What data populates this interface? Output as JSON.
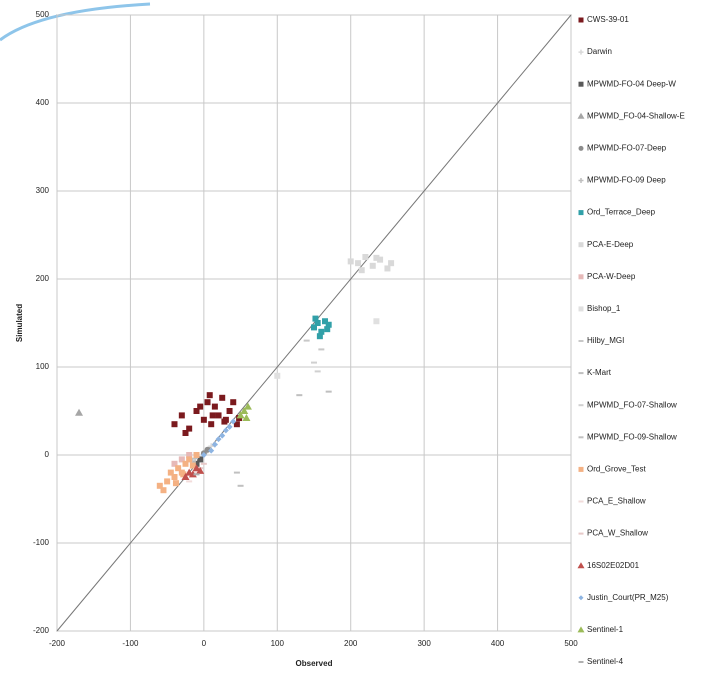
{
  "chart_data": {
    "type": "scatter",
    "x_label": "Observed",
    "y_label": "Simulated",
    "xlim": [
      -200,
      500
    ],
    "ylim": [
      -200,
      500
    ],
    "xticks": [
      -200,
      -100,
      0,
      100,
      200,
      300,
      400,
      500
    ],
    "yticks": [
      -200,
      -100,
      0,
      100,
      200,
      300,
      400,
      500
    ],
    "grid": true,
    "legend": "right",
    "series": [
      {
        "name": "CWS-39-01",
        "color": "#7b1a1e",
        "marker": "square",
        "x": [
          -40,
          -30,
          -20,
          -10,
          0,
          5,
          10,
          15,
          20,
          25,
          30,
          35,
          40,
          45,
          -25,
          -5,
          12,
          28,
          48,
          8
        ],
        "values": [
          35,
          45,
          30,
          50,
          40,
          60,
          35,
          55,
          45,
          65,
          40,
          50,
          60,
          35,
          25,
          55,
          45,
          38,
          42,
          68
        ]
      },
      {
        "name": "Darwin",
        "color": "#d9d9d9",
        "marker": "plus",
        "x": [
          5,
          10,
          15
        ],
        "values": [
          5,
          10,
          12
        ]
      },
      {
        "name": "MPWMD-FO-04 Deep-W",
        "color": "#595959",
        "marker": "square",
        "x": [
          -10,
          -5
        ],
        "values": [
          -10,
          -5
        ]
      },
      {
        "name": "MPWMD_FO-04-Shallow-E",
        "color": "#a6a6a6",
        "marker": "triangle",
        "x": [
          -170
        ],
        "values": [
          48
        ]
      },
      {
        "name": "MPWMD-FO-07-Deep",
        "color": "#8c8c8c",
        "marker": "circle",
        "x": [
          0,
          5
        ],
        "values": [
          2,
          6
        ]
      },
      {
        "name": "MPWMD-FO-09 Deep",
        "color": "#bfbfbf",
        "marker": "plus",
        "x": [
          -15,
          -12
        ],
        "values": [
          -8,
          -4
        ]
      },
      {
        "name": "Ord_Terrace_Deep",
        "color": "#31a0a8",
        "marker": "square",
        "x": [
          150,
          155,
          160,
          165,
          170,
          158,
          152,
          168
        ],
        "values": [
          145,
          150,
          140,
          152,
          148,
          135,
          155,
          143
        ]
      },
      {
        "name": "PCA-E-Deep",
        "color": "#d9d9d9",
        "marker": "square",
        "x": [
          200,
          210,
          220,
          230,
          240,
          250,
          255,
          215,
          235
        ],
        "values": [
          220,
          218,
          225,
          215,
          222,
          212,
          218,
          210,
          224
        ]
      },
      {
        "name": "PCA-W-Deep",
        "color": "#e6b9b8",
        "marker": "square",
        "x": [
          -40,
          -30,
          -20
        ],
        "values": [
          -10,
          -5,
          0
        ]
      },
      {
        "name": "Bishop_1",
        "color": "#e0e0e0",
        "marker": "square",
        "x": [
          100,
          235
        ],
        "values": [
          90,
          152
        ]
      },
      {
        "name": "Hilby_MGI",
        "color": "#c8c8c8",
        "marker": "dash",
        "x": [
          140,
          160
        ],
        "values": [
          130,
          120
        ]
      },
      {
        "name": "K-Mart",
        "color": "#bfbfbf",
        "marker": "dash",
        "x": [
          130,
          170
        ],
        "values": [
          68,
          72
        ]
      },
      {
        "name": "MPWMD_FO-07-Shallow",
        "color": "#d0d0d0",
        "marker": "dash",
        "x": [
          150,
          155
        ],
        "values": [
          105,
          95
        ]
      },
      {
        "name": "MPWMD_FO-09-Shallow",
        "color": "#c0c0c0",
        "marker": "dash",
        "x": [
          50,
          45
        ],
        "values": [
          -35,
          -20
        ]
      },
      {
        "name": "Ord_Grove_Test",
        "color": "#f4b183",
        "marker": "square",
        "x": [
          -60,
          -50,
          -45,
          -40,
          -35,
          -30,
          -25,
          -20,
          -15,
          -10,
          -55,
          -38,
          -28
        ],
        "values": [
          -35,
          -30,
          -20,
          -25,
          -15,
          -20,
          -10,
          -5,
          -12,
          0,
          -40,
          -32,
          -22
        ]
      },
      {
        "name": "PCA_E_Shallow",
        "color": "#f2dcdb",
        "marker": "dash",
        "x": [
          -20,
          -10
        ],
        "values": [
          -30,
          -20
        ]
      },
      {
        "name": "PCA_W_Shallow",
        "color": "#e7c9c8",
        "marker": "dash",
        "x": [
          -5,
          0
        ],
        "values": [
          -15,
          -10
        ]
      },
      {
        "name": "16S02E02D01",
        "color": "#c0504d",
        "marker": "triangle",
        "x": [
          -25,
          -20,
          -15,
          -10,
          -5
        ],
        "values": [
          -25,
          -20,
          -22,
          -15,
          -18
        ]
      },
      {
        "name": "Justin_Court(PR_M25)",
        "color": "#8db4e2",
        "marker": "diamond",
        "x": [
          0,
          10,
          15,
          20,
          25,
          30,
          35,
          40
        ],
        "values": [
          0,
          5,
          12,
          18,
          22,
          28,
          32,
          38
        ]
      },
      {
        "name": "Sentinel-1",
        "color": "#9bbb59",
        "marker": "triangle",
        "x": [
          50,
          55,
          60,
          58
        ],
        "values": [
          45,
          50,
          55,
          42
        ]
      },
      {
        "name": "Sentinel-4",
        "color": "#b0b0b0",
        "marker": "dash",
        "x": [
          -10
        ],
        "values": [
          -22
        ]
      }
    ]
  }
}
